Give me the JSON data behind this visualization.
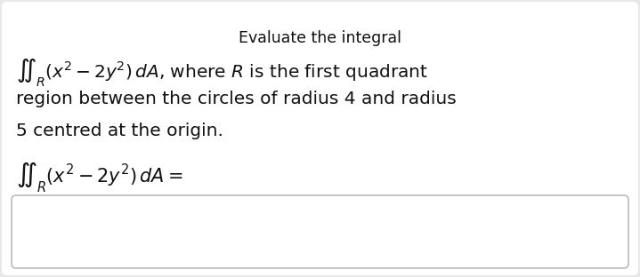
{
  "background_color": "#e8e8e8",
  "panel_color": "#ffffff",
  "title_text": "Evaluate the integral",
  "title_fontsize": 12.5,
  "body_fontsize": 14.5,
  "answer_fontsize": 15,
  "box_edge_color": "#bbbbbb",
  "box_color": "#ffffff",
  "text_color": "#111111",
  "line1": "$\\iint_R(x^2 - 2y^2)\\,dA$, where $R$ is the first quadrant",
  "line2": "region between the circles of radius 4 and radius",
  "line3": "5 centred at the origin.",
  "answer_line": "$\\iint_R(x^2 - 2y^2)\\,dA =$"
}
